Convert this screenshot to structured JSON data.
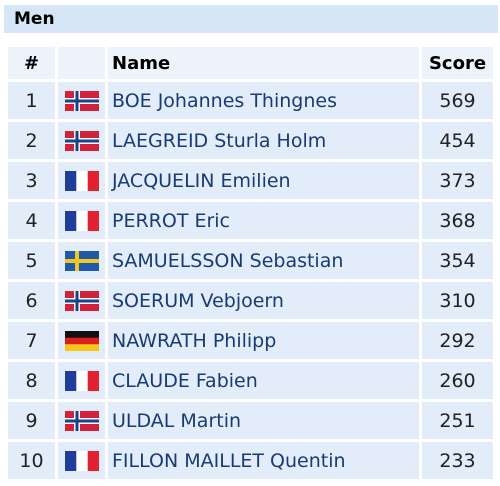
{
  "header": {
    "title": "Men"
  },
  "table": {
    "columns": [
      "#",
      "Name",
      "Score"
    ],
    "rows": [
      [
        1,
        "BOE Johannes Thingnes",
        569
      ],
      [
        2,
        "LAEGREID Sturla Holm",
        454
      ],
      [
        3,
        "JACQUELIN Emilien",
        373
      ],
      [
        4,
        "PERROT Eric",
        368
      ],
      [
        5,
        "SAMUELSSON Sebastian",
        354
      ],
      [
        6,
        "SOERUM Vebjoern",
        310
      ],
      [
        7,
        "NAWRATH Philipp",
        292
      ],
      [
        8,
        "CLAUDE Fabien",
        260
      ],
      [
        9,
        "ULDAL Martin",
        251
      ],
      [
        10,
        "FILLON MAILLET Quentin",
        233
      ]
    ]
  }
}
